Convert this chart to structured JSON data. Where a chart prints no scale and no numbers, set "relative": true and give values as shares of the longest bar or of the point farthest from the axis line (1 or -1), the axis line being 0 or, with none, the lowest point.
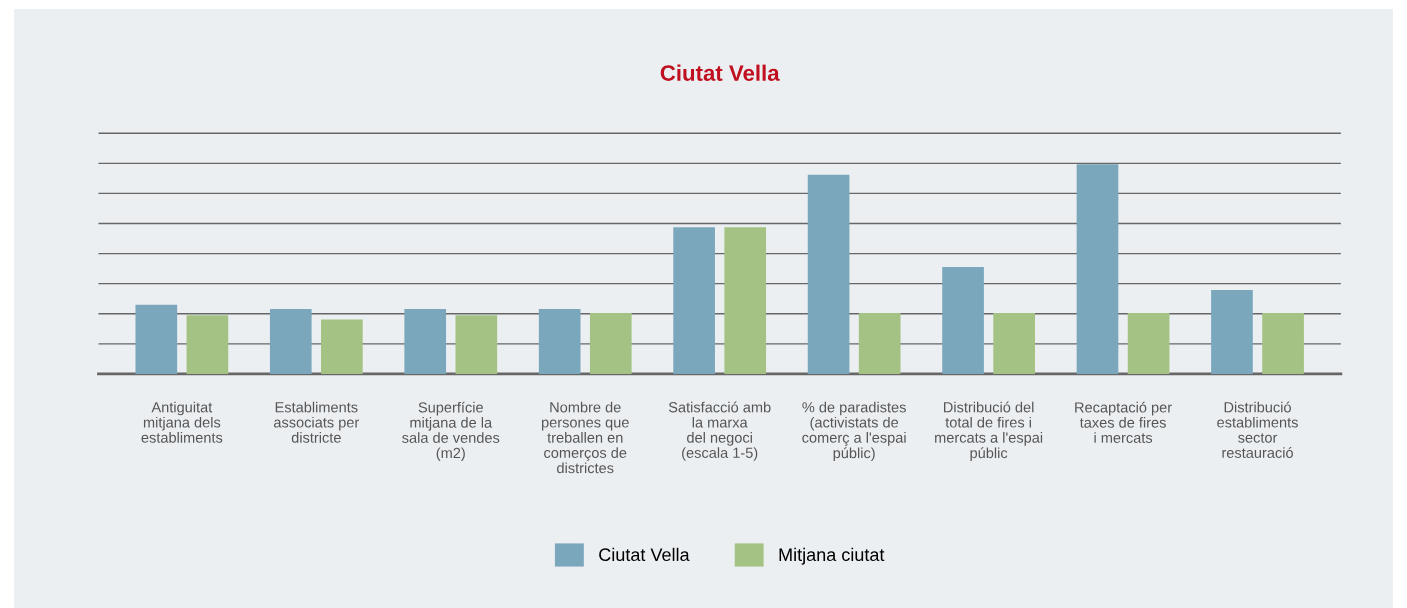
{
  "chart_data": {
    "type": "bar",
    "title": "Ciutat Vella",
    "relative": true,
    "grid": "y",
    "legend": "bottom",
    "categories": [
      "Antiguitat\nmitjana dels\nestabliments",
      "Establiments\nassociats per\ndistricte",
      "Superfície\nmitjana de la\nsala de vendes\n(m2)",
      "Nombre de\npersones que\ntreballen en\ncomerços de\ndistrictes",
      "Satisfacció amb\nla marxa\ndel negoci\n(escala 1-5)",
      "% de paradistes\n(activistats de\ncomerç a l'espai\npúblic)",
      "Distribució del\ntotal de fires i\nmercats a l'espai\npúblic",
      "Recaptació per\ntaxes de fires\ni mercats",
      "Distribució\nestabliments\nsector\nrestauració"
    ],
    "series": [
      {
        "name": "Ciutat Vella",
        "color": "#7ba7bd",
        "values": [
          0.33,
          0.31,
          0.31,
          0.31,
          0.7,
          0.95,
          0.51,
          1.0,
          0.4
        ]
      },
      {
        "name": "Mitjana ciutat",
        "color": "#a3c283",
        "values": [
          0.28,
          0.26,
          0.28,
          0.29,
          0.7,
          0.29,
          0.29,
          0.29,
          0.29
        ]
      }
    ]
  }
}
